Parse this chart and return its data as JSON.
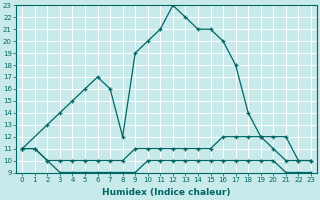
{
  "xlabel": "Humidex (Indice chaleur)",
  "bg_color": "#c8eaea",
  "grid_color": "#ffffff",
  "line_color": "#006666",
  "xlim": [
    -0.5,
    23.5
  ],
  "ylim": [
    9,
    23
  ],
  "xticks": [
    0,
    1,
    2,
    3,
    4,
    5,
    6,
    7,
    8,
    9,
    10,
    11,
    12,
    13,
    14,
    15,
    16,
    17,
    18,
    19,
    20,
    21,
    22,
    23
  ],
  "yticks": [
    9,
    10,
    11,
    12,
    13,
    14,
    15,
    16,
    17,
    18,
    19,
    20,
    21,
    22,
    23
  ],
  "series": [
    {
      "x": [
        0,
        2,
        3,
        4,
        5,
        6,
        7,
        8,
        9,
        10,
        11,
        12,
        13,
        14,
        15,
        16,
        17,
        18,
        19,
        20,
        21,
        22,
        23
      ],
      "y": [
        11,
        13,
        14,
        15,
        16,
        17,
        16,
        12,
        19,
        20,
        21,
        23,
        22,
        21,
        21,
        20,
        18,
        14,
        12,
        12,
        12,
        10,
        10
      ]
    },
    {
      "x": [
        0,
        1,
        2,
        3,
        4,
        5,
        6,
        7,
        8,
        9,
        10,
        11,
        12,
        13,
        14,
        15,
        16,
        17,
        18,
        19,
        20,
        21,
        22,
        23
      ],
      "y": [
        11,
        11,
        10,
        10,
        10,
        10,
        10,
        10,
        10,
        11,
        11,
        11,
        11,
        11,
        11,
        11,
        12,
        12,
        12,
        12,
        11,
        10,
        10,
        10
      ]
    },
    {
      "x": [
        0,
        1,
        2,
        3,
        4,
        5,
        6,
        7,
        8,
        9,
        10,
        11,
        12,
        13,
        14,
        15,
        16,
        17,
        18,
        19,
        20,
        21,
        22,
        23
      ],
      "y": [
        11,
        11,
        10,
        9,
        9,
        9,
        9,
        9,
        9,
        9,
        10,
        10,
        10,
        10,
        10,
        10,
        10,
        10,
        10,
        10,
        10,
        9,
        9,
        9
      ]
    }
  ]
}
